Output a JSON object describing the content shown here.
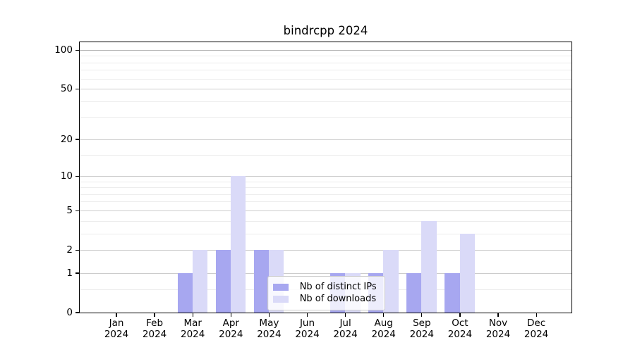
{
  "chart_data": {
    "type": "bar",
    "title": "bindrcpp 2024",
    "x_year": "2024",
    "categories": [
      "Jan",
      "Feb",
      "Mar",
      "Apr",
      "May",
      "Jun",
      "Jul",
      "Aug",
      "Sep",
      "Oct",
      "Nov",
      "Dec"
    ],
    "series": [
      {
        "name": "Nb of distinct IPs",
        "color": "#a7a7f0",
        "values": [
          0,
          0,
          1,
          2,
          2,
          0,
          1,
          1,
          1,
          1,
          0,
          0
        ]
      },
      {
        "name": "Nb of downloads",
        "color": "#dadaf8",
        "values": [
          0,
          0,
          2,
          10,
          2,
          0,
          1,
          2,
          4,
          3,
          0,
          0
        ]
      }
    ],
    "yscale": "log10(1+x)",
    "ylim": [
      0,
      115
    ],
    "y_ticks": [
      100,
      50,
      20,
      10,
      5,
      2,
      1,
      0
    ],
    "y_major_gridlines": [
      1,
      2,
      5,
      10,
      20,
      50,
      100
    ],
    "y_minor_gridlines": [
      0.5,
      3,
      4,
      6,
      7,
      8,
      9,
      15,
      30,
      40,
      60,
      70,
      80,
      90
    ],
    "grid": true,
    "legend": {
      "position": "lower center",
      "entries": [
        "Nb of distinct IPs",
        "Nb of downloads"
      ]
    }
  }
}
